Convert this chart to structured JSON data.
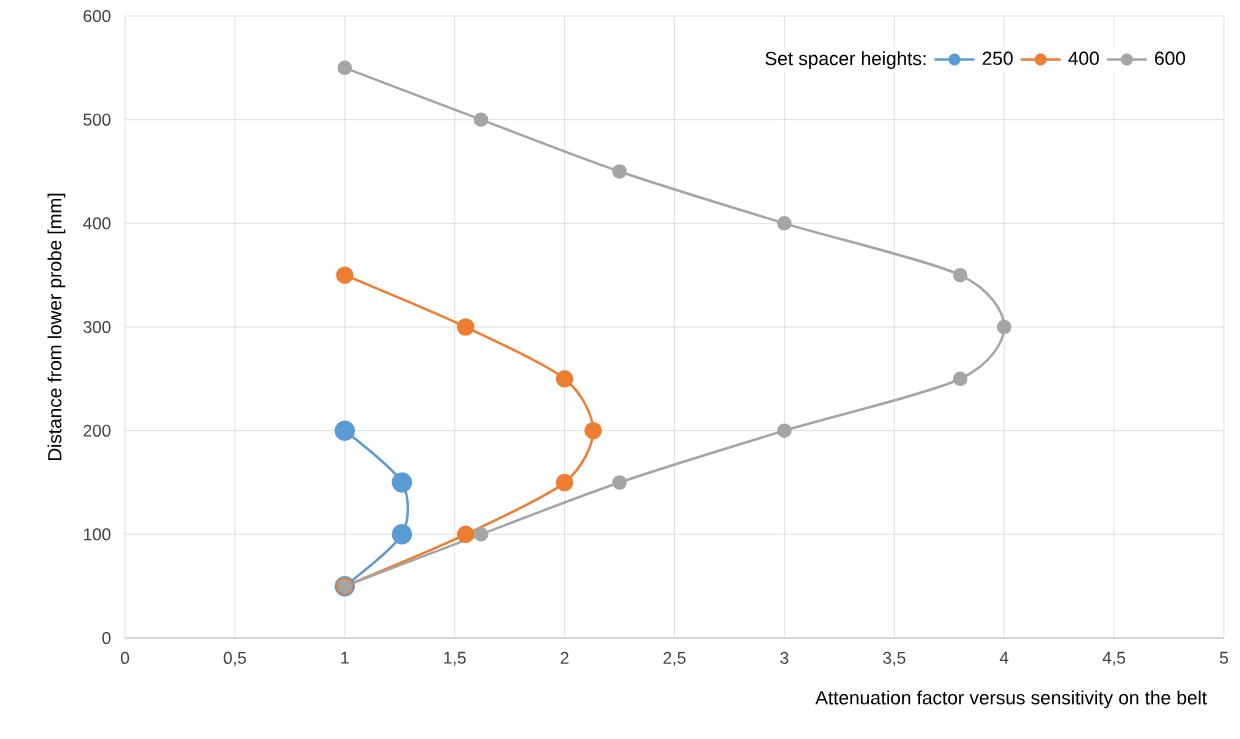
{
  "chart_data": {
    "type": "line",
    "xlabel": "Attenuation factor versus sensitivity on the belt",
    "ylabel": "Distance from lower probe [mm]",
    "legend_title": "Set spacer heights:",
    "xlim": [
      0,
      5
    ],
    "ylim": [
      0,
      600
    ],
    "xticks": [
      0,
      {
        "value": 0.5,
        "label": "0,5"
      },
      1,
      {
        "value": 1.5,
        "label": "1,5"
      },
      2,
      {
        "value": 2.5,
        "label": "2,5"
      },
      3,
      {
        "value": 3.5,
        "label": "3,5"
      },
      4,
      {
        "value": 4.5,
        "label": "4,5"
      },
      5
    ],
    "yticks": [
      0,
      100,
      200,
      300,
      400,
      500,
      600
    ],
    "grid": true,
    "legend": "top right",
    "marker": "circle",
    "line_style": "solid",
    "series": [
      {
        "name": "250",
        "color": "#5b9bd5",
        "x": [
          1,
          1.26,
          1.26,
          1
        ],
        "values": [
          50,
          100,
          150,
          200
        ]
      },
      {
        "name": "400",
        "color": "#ed7d31",
        "x": [
          1,
          1.55,
          2,
          2.13,
          2,
          1.55,
          1
        ],
        "values": [
          50,
          100,
          150,
          200,
          250,
          300,
          350
        ]
      },
      {
        "name": "600",
        "color": "#a5a5a5",
        "x": [
          1,
          1.62,
          2.25,
          3,
          3.8,
          4,
          3.8,
          3,
          2.25,
          1.62,
          1
        ],
        "values": [
          50,
          100,
          150,
          200,
          250,
          300,
          350,
          400,
          450,
          500,
          550
        ]
      }
    ]
  }
}
